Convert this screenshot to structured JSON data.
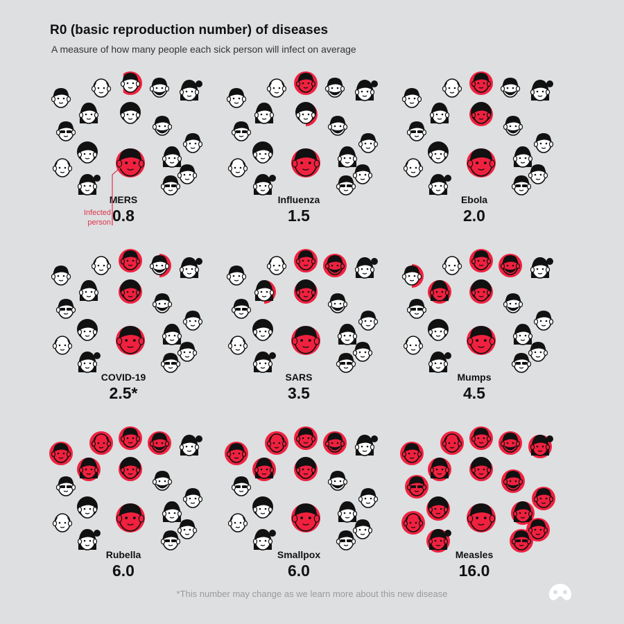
{
  "title": "R0 (basic reproduction number) of diseases",
  "subtitle": "A measure of how many people each sick person will infect on average",
  "annotation": [
    "Infected",
    "person"
  ],
  "footnote": "*This number may change as we learn more about this new disease",
  "colors": {
    "infected": "#f0213f",
    "background": "#dddfe1",
    "ink": "#111111",
    "face": "#ffffff"
  },
  "chart_data": {
    "type": "pictogram",
    "title": "R0 (basic reproduction number) of diseases",
    "categories": [
      "MERS",
      "Influenza",
      "Ebola",
      "COVID-19",
      "SARS",
      "Mumps",
      "Rubella",
      "Smallpox",
      "Measles"
    ],
    "values": [
      0.8,
      1.5,
      2.0,
      2.5,
      3.5,
      4.5,
      6.0,
      6.0,
      16.0
    ],
    "value_labels": [
      "0.8",
      "1.5",
      "2.0",
      "2.5*",
      "3.5",
      "4.5",
      "6.0",
      "6.0",
      "16.0"
    ],
    "people_per_panel": 17
  }
}
